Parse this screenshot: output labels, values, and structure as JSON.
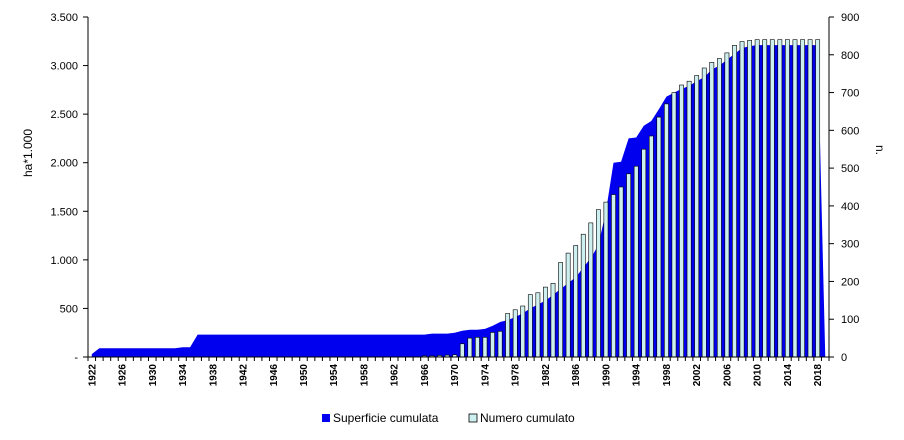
{
  "chart_data": {
    "type": "bar",
    "title": "",
    "xlabel": "",
    "ylabel": "ha*1.000",
    "y2label": "n.",
    "ylim": [
      0,
      3500
    ],
    "y2lim": [
      0,
      900
    ],
    "y_ticks": [
      "-",
      "500",
      "1.000",
      "1.500",
      "2.000",
      "2.500",
      "3.000",
      "3.500"
    ],
    "y2_ticks": [
      "0",
      "100",
      "200",
      "300",
      "400",
      "500",
      "600",
      "700",
      "800",
      "900"
    ],
    "x_tick_labels": [
      "1922",
      "1926",
      "1930",
      "1934",
      "1938",
      "1942",
      "1946",
      "1950",
      "1954",
      "1958",
      "1962",
      "1966",
      "1970",
      "1974",
      "1978",
      "1982",
      "1986",
      "1990",
      "1994",
      "1998",
      "2002",
      "2006",
      "2010",
      "2014",
      "2018"
    ],
    "grid": false,
    "legend_position": "bottom",
    "colors": {
      "area": "#0000ee",
      "bar_fill": "#cdeff0",
      "bar_stroke": "#000000"
    },
    "years": [
      1922,
      1923,
      1924,
      1925,
      1926,
      1927,
      1928,
      1929,
      1930,
      1931,
      1932,
      1933,
      1934,
      1935,
      1936,
      1937,
      1938,
      1939,
      1940,
      1941,
      1942,
      1943,
      1944,
      1945,
      1946,
      1947,
      1948,
      1949,
      1950,
      1951,
      1952,
      1953,
      1954,
      1955,
      1956,
      1957,
      1958,
      1959,
      1960,
      1961,
      1962,
      1963,
      1964,
      1965,
      1966,
      1967,
      1968,
      1969,
      1970,
      1971,
      1972,
      1973,
      1974,
      1975,
      1976,
      1977,
      1978,
      1979,
      1980,
      1981,
      1982,
      1983,
      1984,
      1985,
      1986,
      1987,
      1988,
      1989,
      1990,
      1991,
      1992,
      1993,
      1994,
      1995,
      1996,
      1997,
      1998,
      1999,
      2000,
      2001,
      2002,
      2003,
      2004,
      2005,
      2006,
      2007,
      2008,
      2009,
      2010,
      2011,
      2012,
      2013,
      2014,
      2015,
      2016,
      2017,
      2018,
      2019
    ],
    "series": [
      {
        "name": "Superficie cumulata",
        "axis": "left",
        "kind": "area",
        "values": [
          30,
          90,
          90,
          90,
          90,
          90,
          90,
          90,
          90,
          90,
          90,
          90,
          100,
          100,
          230,
          230,
          230,
          230,
          230,
          230,
          230,
          230,
          230,
          230,
          230,
          230,
          230,
          230,
          230,
          230,
          230,
          230,
          230,
          230,
          230,
          230,
          230,
          230,
          230,
          230,
          230,
          230,
          230,
          230,
          230,
          240,
          240,
          240,
          250,
          270,
          280,
          280,
          290,
          320,
          360,
          380,
          410,
          450,
          500,
          540,
          580,
          640,
          700,
          760,
          820,
          920,
          1020,
          1150,
          1500,
          2000,
          2010,
          2250,
          2260,
          2380,
          2430,
          2550,
          2680,
          2720,
          2760,
          2790,
          2840,
          2880,
          2960,
          3000,
          3060,
          3120,
          3180,
          3200,
          3210,
          3210,
          3210,
          3210,
          3210,
          3210,
          3210,
          3210,
          3210,
          20
        ]
      },
      {
        "name": "Numero cumulato",
        "axis": "right",
        "kind": "bar",
        "values": [
          0,
          0,
          0,
          0,
          0,
          0,
          0,
          0,
          0,
          0,
          0,
          0,
          0,
          0,
          0,
          0,
          0,
          0,
          0,
          0,
          0,
          0,
          0,
          0,
          0,
          0,
          0,
          0,
          0,
          0,
          0,
          0,
          0,
          0,
          0,
          0,
          0,
          0,
          0,
          0,
          0,
          0,
          0,
          0,
          3,
          3,
          4,
          5,
          6,
          35,
          50,
          52,
          52,
          65,
          68,
          115,
          125,
          135,
          165,
          170,
          185,
          195,
          250,
          275,
          295,
          325,
          355,
          390,
          410,
          430,
          450,
          485,
          505,
          550,
          585,
          635,
          670,
          700,
          720,
          730,
          745,
          765,
          780,
          790,
          805,
          825,
          835,
          838,
          840,
          840,
          840,
          840,
          840,
          840,
          840,
          840,
          840,
          0
        ]
      }
    ]
  }
}
